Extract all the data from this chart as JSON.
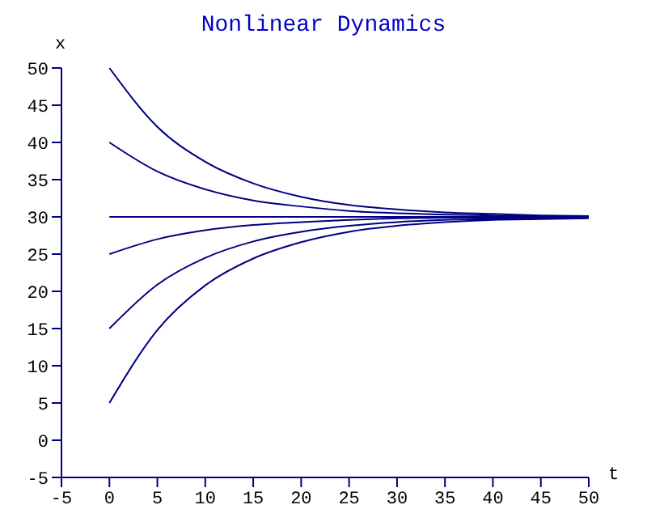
{
  "chart_data": {
    "type": "line",
    "title": "Nonlinear Dynamics",
    "xlabel": "t",
    "ylabel": "x",
    "x": [
      0,
      5,
      10,
      15,
      20,
      25,
      30,
      35,
      40,
      45,
      50
    ],
    "series": [
      {
        "color": "#000080",
        "values": [
          50,
          42.1,
          37.4,
          34.5,
          32.7,
          31.6,
          31.0,
          30.6,
          30.4,
          30.2,
          30.1
        ]
      },
      {
        "color": "#000080",
        "values": [
          40,
          36.1,
          33.7,
          32.2,
          31.4,
          30.8,
          30.5,
          30.3,
          30.2,
          30.1,
          30.1
        ]
      },
      {
        "color": "#000080",
        "values": [
          30,
          30,
          30,
          30,
          30,
          30,
          30,
          30,
          30,
          30,
          30
        ]
      },
      {
        "color": "#000080",
        "values": [
          25,
          27.0,
          28.2,
          28.9,
          29.3,
          29.6,
          29.8,
          29.9,
          29.9,
          29.9,
          30
        ]
      },
      {
        "color": "#000080",
        "values": [
          15,
          20.9,
          24.5,
          26.7,
          28.0,
          28.8,
          29.3,
          29.6,
          29.7,
          29.8,
          29.9
        ]
      },
      {
        "color": "#000080",
        "values": [
          5,
          14.8,
          20.8,
          24.4,
          26.6,
          28.0,
          28.8,
          29.3,
          29.6,
          29.7,
          29.8
        ]
      }
    ],
    "xlim": [
      -5,
      50
    ],
    "xticks": [
      -5,
      0,
      5,
      10,
      15,
      20,
      25,
      30,
      35,
      40,
      45,
      50
    ],
    "ylim": [
      -5,
      50
    ],
    "yticks": [
      -5,
      0,
      5,
      10,
      15,
      20,
      25,
      30,
      35,
      40,
      45,
      50
    ],
    "marker": "none",
    "line_style": "solid"
  }
}
